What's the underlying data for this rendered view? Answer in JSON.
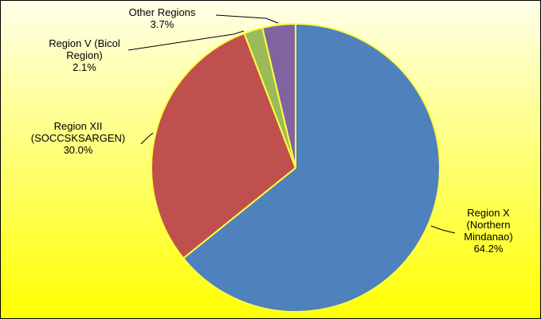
{
  "chart_data": {
    "type": "pie",
    "categories": [
      "Region X (Northern Mindanao)",
      "Region XII (SOCCSKSARGEN)",
      "Region V (Bicol Region)",
      "Other Regions"
    ],
    "values": [
      64.2,
      30.0,
      2.1,
      3.7
    ],
    "value_labels": [
      "64.2%",
      "30.0%",
      "2.1%",
      "3.7%"
    ],
    "colors": [
      "#4f81bd",
      "#c0504d",
      "#9bbb59",
      "#8064a2"
    ]
  }
}
